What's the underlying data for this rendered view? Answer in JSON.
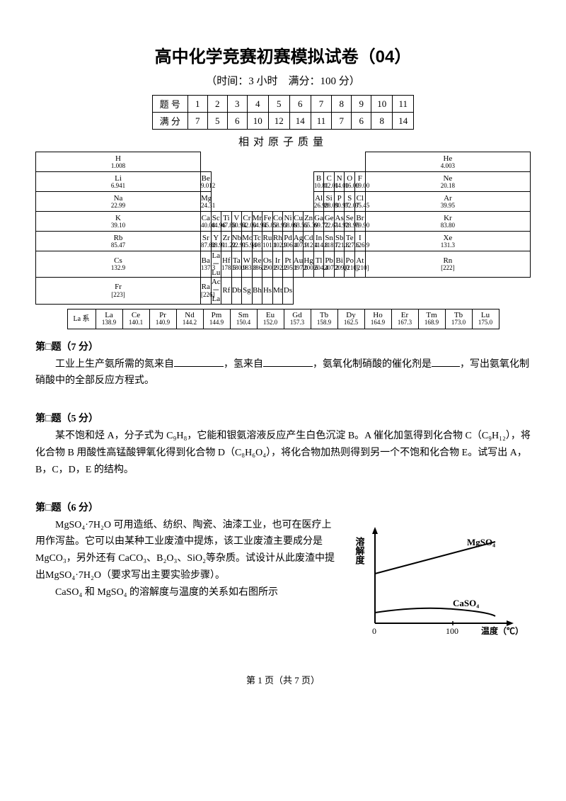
{
  "title": "高中化学竞赛初赛模拟试卷（04）",
  "subtitle": "（时间：3 小时　满分：100 分）",
  "score_table": {
    "row1_label": "题 号",
    "row2_label": "满 分",
    "numbers": [
      "1",
      "2",
      "3",
      "4",
      "5",
      "6",
      "7",
      "8",
      "9",
      "10",
      "11"
    ],
    "scores": [
      "7",
      "5",
      "6",
      "10",
      "12",
      "14",
      "11",
      "7",
      "6",
      "8",
      "14"
    ]
  },
  "mass_title": "相对原子质量",
  "periodic": {
    "rows": [
      [
        [
          "H",
          "1.008"
        ],
        null,
        null,
        null,
        null,
        null,
        null,
        null,
        null,
        null,
        null,
        null,
        null,
        null,
        null,
        null,
        null,
        [
          "He",
          "4.003"
        ]
      ],
      [
        [
          "Li",
          "6.941"
        ],
        [
          "Be",
          "9.012"
        ],
        null,
        null,
        null,
        null,
        null,
        null,
        null,
        null,
        null,
        null,
        [
          "B",
          "10.81"
        ],
        [
          "C",
          "12.01"
        ],
        [
          "N",
          "14.01"
        ],
        [
          "O",
          "16.00"
        ],
        [
          "F",
          "19.00"
        ],
        [
          "Ne",
          "20.18"
        ]
      ],
      [
        [
          "Na",
          "22.99"
        ],
        [
          "Mg",
          "24.31"
        ],
        null,
        null,
        null,
        null,
        null,
        null,
        null,
        null,
        null,
        null,
        [
          "Al",
          "26.98"
        ],
        [
          "Si",
          "28.09"
        ],
        [
          "P",
          "30.97"
        ],
        [
          "S",
          "32.07"
        ],
        [
          "Cl",
          "35.45"
        ],
        [
          "Ar",
          "39.95"
        ]
      ],
      [
        [
          "K",
          "39.10"
        ],
        [
          "Ca",
          "40.08"
        ],
        [
          "Sc",
          "44.96"
        ],
        [
          "Ti",
          "47.88"
        ],
        [
          "V",
          "50.94"
        ],
        [
          "Cr",
          "52.00"
        ],
        [
          "Mn",
          "54.94"
        ],
        [
          "Fe",
          "55.85"
        ],
        [
          "Co",
          "58.93"
        ],
        [
          "Ni",
          "58.69"
        ],
        [
          "Cu",
          "63.55"
        ],
        [
          "Zn",
          "65.39"
        ],
        [
          "Ga",
          "69.72"
        ],
        [
          "Ge",
          "72.61"
        ],
        [
          "As",
          "74.92"
        ],
        [
          "Se",
          "78.96"
        ],
        [
          "Br",
          "79.90"
        ],
        [
          "Kr",
          "83.80"
        ]
      ],
      [
        [
          "Rb",
          "85.47"
        ],
        [
          "Sr",
          "87.62"
        ],
        [
          "Y",
          "88.91"
        ],
        [
          "Zr",
          "91.22"
        ],
        [
          "Nb",
          "92.91"
        ],
        [
          "Mo",
          "95.94"
        ],
        [
          "Tc",
          "[98]"
        ],
        [
          "Ru",
          "101.1"
        ],
        [
          "Rh",
          "102.9"
        ],
        [
          "Pd",
          "106.4"
        ],
        [
          "Ag",
          "107.9"
        ],
        [
          "Cd",
          "112.4"
        ],
        [
          "In",
          "114.8"
        ],
        [
          "Sn",
          "118.7"
        ],
        [
          "Sb",
          "121.8"
        ],
        [
          "Te",
          "127.6"
        ],
        [
          "I",
          "126.9"
        ],
        [
          "Xe",
          "131.3"
        ]
      ],
      [
        [
          "Cs",
          "132.9"
        ],
        [
          "Ba",
          "137.3"
        ],
        [
          "La－Lu",
          ""
        ],
        [
          "Hf",
          "178.5"
        ],
        [
          "Ta",
          "180.9"
        ],
        [
          "W",
          "183.8"
        ],
        [
          "Re",
          "186.2"
        ],
        [
          "Os",
          "190.2"
        ],
        [
          "Ir",
          "192.2"
        ],
        [
          "Pt",
          "195.1"
        ],
        [
          "Au",
          "197.0"
        ],
        [
          "Hg",
          "200.6"
        ],
        [
          "Tl",
          "204.4"
        ],
        [
          "Pb",
          "207.2"
        ],
        [
          "Bi",
          "209.0"
        ],
        [
          "Po",
          "[210]"
        ],
        [
          "At",
          "[210]"
        ],
        [
          "Rn",
          "[222]"
        ]
      ],
      [
        [
          "Fr",
          "[223]"
        ],
        [
          "Ra",
          "[226]"
        ],
        [
          "Ac－La",
          ""
        ],
        [
          "Rf",
          ""
        ],
        [
          "Db",
          ""
        ],
        [
          "Sg",
          ""
        ],
        [
          "Bh",
          ""
        ],
        [
          "Hs",
          ""
        ],
        [
          "Mt",
          ""
        ],
        [
          "Ds",
          ""
        ],
        null,
        null,
        null,
        null,
        null,
        null,
        null,
        null
      ]
    ]
  },
  "lanthanide": {
    "label": "La 系",
    "cells": [
      [
        "La",
        "138.9"
      ],
      [
        "Ce",
        "140.1"
      ],
      [
        "Pr",
        "140.9"
      ],
      [
        "Nd",
        "144.2"
      ],
      [
        "Pm",
        "144.9"
      ],
      [
        "Sm",
        "150.4"
      ],
      [
        "Eu",
        "152.0"
      ],
      [
        "Gd",
        "157.3"
      ],
      [
        "Tb",
        "158.9"
      ],
      [
        "Dy",
        "162.5"
      ],
      [
        "Ho",
        "164.9"
      ],
      [
        "Er",
        "167.3"
      ],
      [
        "Tm",
        "168.9"
      ],
      [
        "Tb",
        "173.0"
      ],
      [
        "Lu",
        "175.0"
      ]
    ]
  },
  "q1": {
    "title": "第□题（7 分）",
    "pre1": "工业上生产氨所需的氮来自",
    "pre2": "，氢来自",
    "pre3": "，氨氧化制硝酸的催化剂是",
    "pre4": "，写出氨氧化制硝酸中的全部反应方程式。"
  },
  "q2": {
    "title": "第□题（5 分）",
    "body": "某不饱和烃 A，分子式为 C₉H₈，它能和银氨溶液反应产生白色沉淀 B。A 催化加氢得到化合物 C（C₉H₁₂），将化合物 B 用酸性高锰酸钾氧化得到化合物 D（C₈H₆O₄），将化合物加热则得到另一个不饱和化合物 E。试写出 A，B，C，D，E 的结构。"
  },
  "q3": {
    "title": "第□题（6 分）",
    "body1": "MgSO₄·7H₂O 可用造纸、纺织、陶瓷、油漆工业，也可在医疗上用作泻盐。它可以由某种工业废渣中提炼，该工业废渣主要成分是 MgCO₃，另外还有 CaCO₃、B₂O₃、SiO₂等杂质。试设计从此废渣中提出MgSO₄·7H₂O（要求写出主要实验步骤）。",
    "body2": "CaSO₄ 和 MgSO₄ 的溶解度与温度的关系如右图所示",
    "graph": {
      "ylabel": "溶解度",
      "xlabel": "温度（℃）",
      "xticks": [
        "0",
        "100"
      ],
      "line1_label": "MgSO₄",
      "line2_label": "CaSO₄",
      "axis_color": "#000",
      "line_color": "#000",
      "text_color": "#000"
    }
  },
  "footer": "第 1 页（共 7 页）"
}
